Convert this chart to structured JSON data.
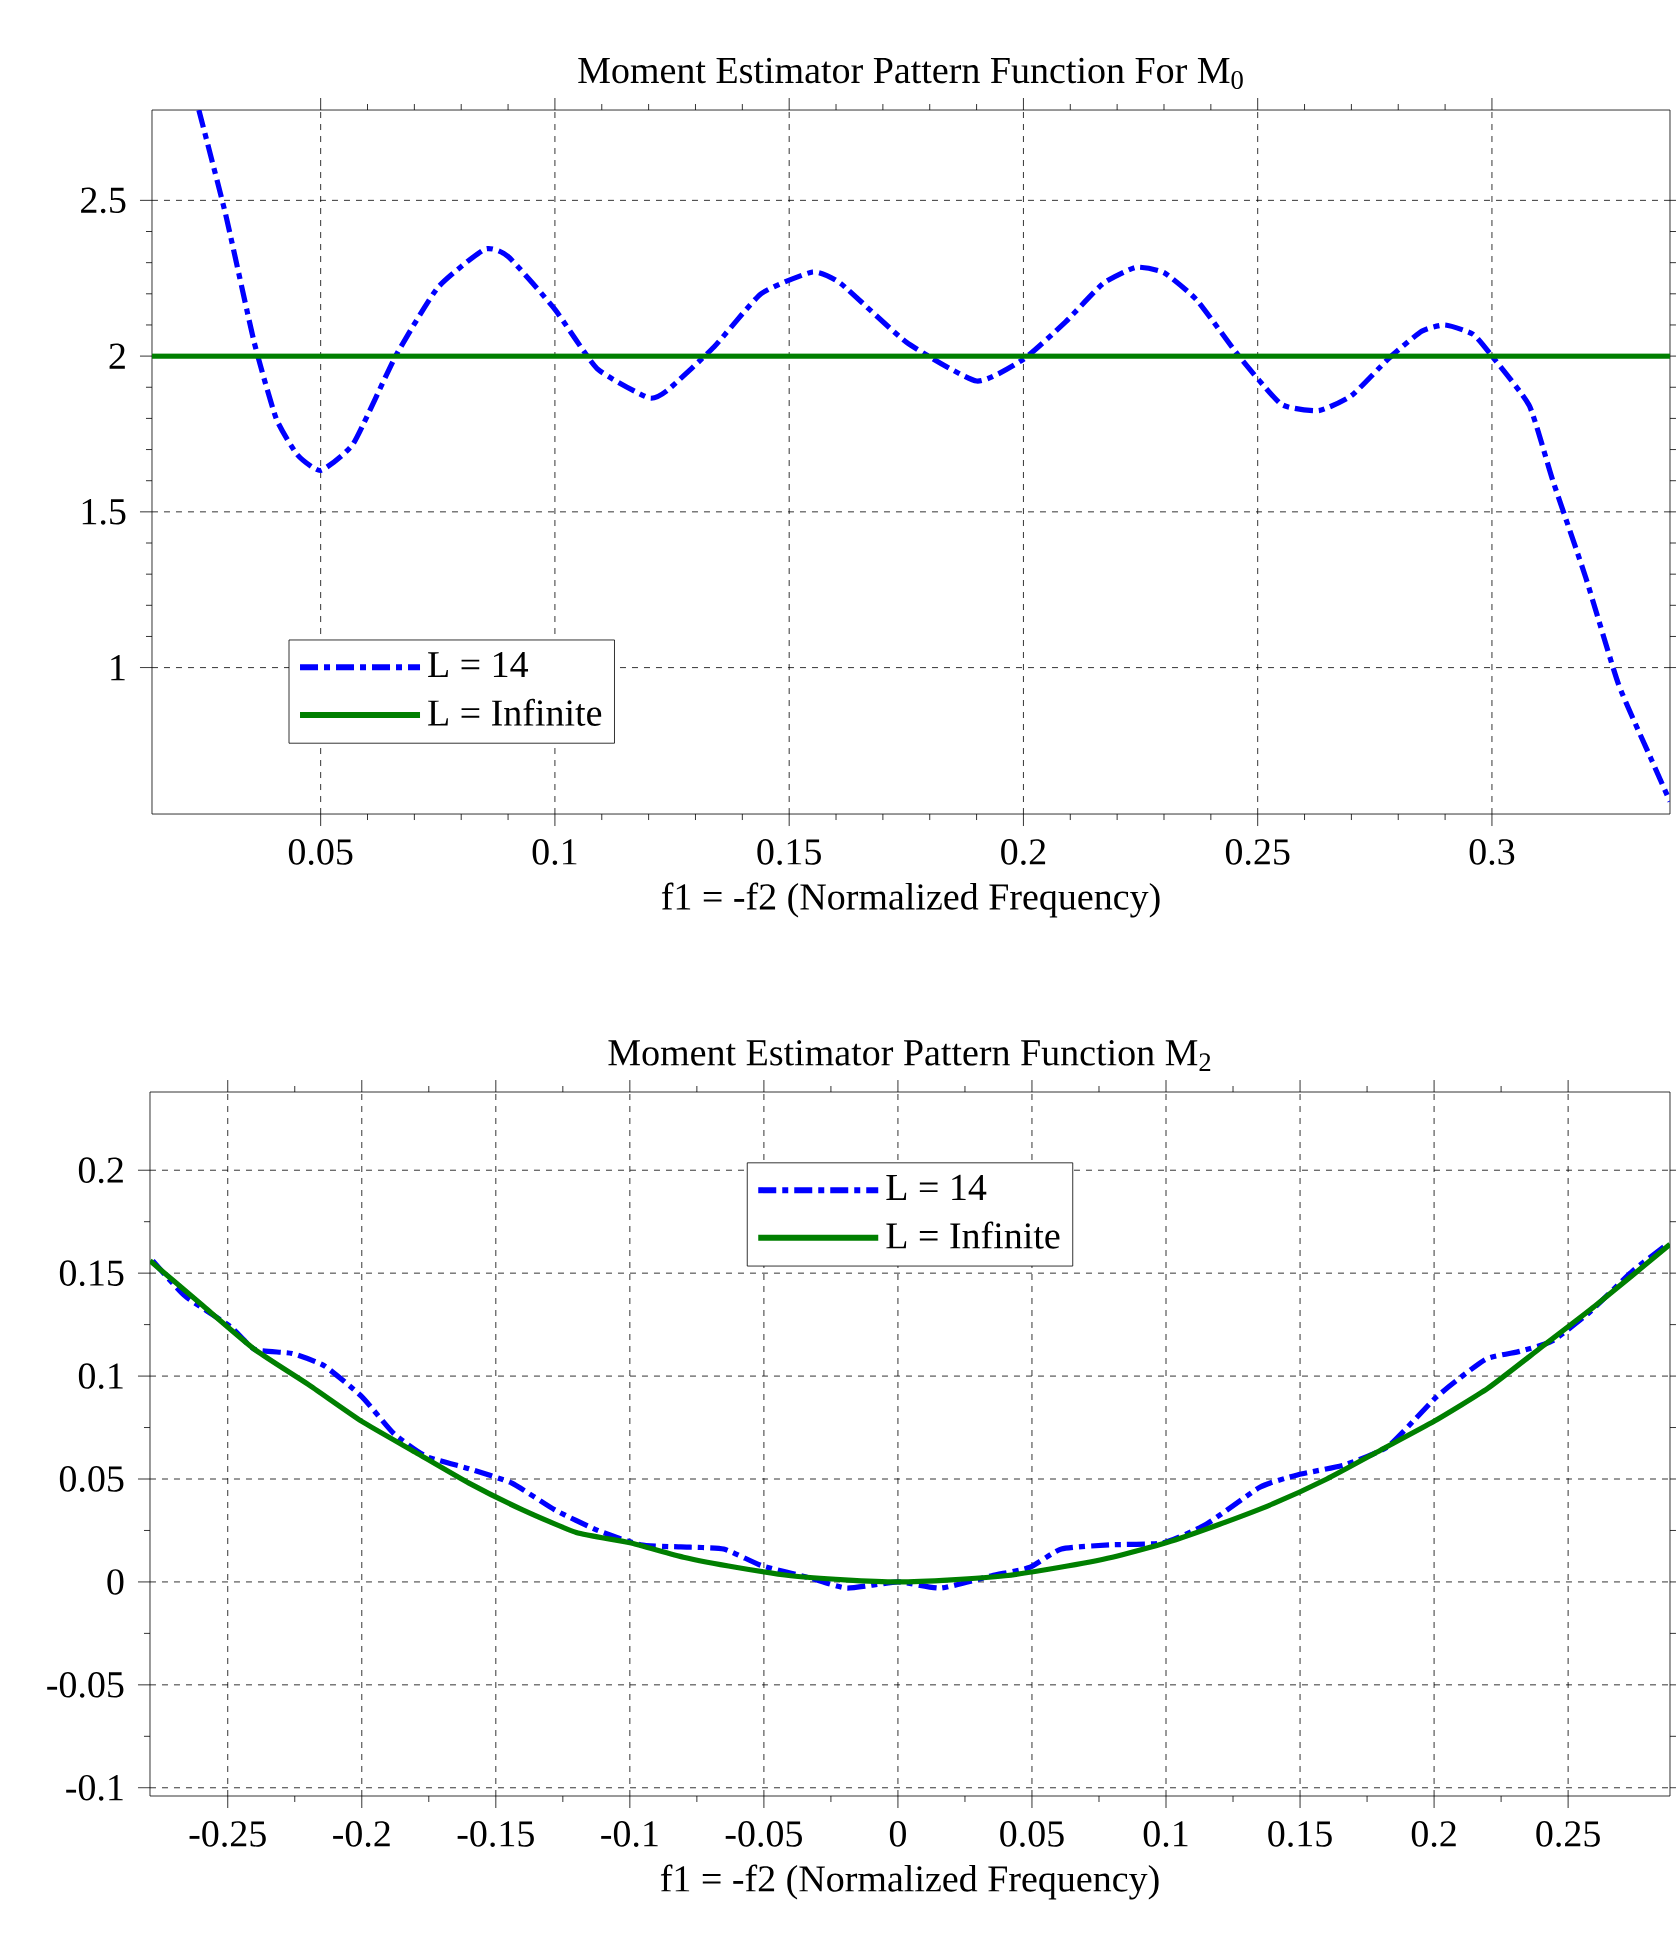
{
  "chart_data": [
    {
      "type": "line",
      "title": "Moment Estimator Pattern Function For M$_{0}$",
      "xlabel": "f1 = -f2 (Normalized Frequency)",
      "xlim": [
        0.014,
        0.338
      ],
      "ylim": [
        0.53,
        2.79
      ],
      "xticks": [
        0.05,
        0.1,
        0.15,
        0.2,
        0.25,
        0.3
      ],
      "yticks": [
        1,
        1.5,
        2,
        2.5
      ],
      "grid": true,
      "legend": "bottom left",
      "series": [
        {
          "name": "L = 14",
          "color": "#0000ff",
          "line_style": "dashdot",
          "x": [
            0.024,
            0.0297,
            0.0358,
            0.0405,
            0.045,
            0.05,
            0.057,
            0.066,
            0.075,
            0.085,
            0.09,
            0.1,
            0.109,
            0.12,
            0.124,
            0.134,
            0.144,
            0.155,
            0.161,
            0.175,
            0.19,
            0.2,
            0.209,
            0.217,
            0.224,
            0.23,
            0.237,
            0.246,
            0.255,
            0.263,
            0.27,
            0.278,
            0.285,
            0.29,
            0.296,
            0.3,
            0.308,
            0.313,
            0.32,
            0.327,
            0.334,
            0.338
          ],
          "values": [
            2.79,
            2.456,
            2.045,
            1.8,
            1.684,
            1.633,
            1.72,
            2.0,
            2.22,
            2.343,
            2.32,
            2.15,
            1.96,
            1.866,
            1.89,
            2.03,
            2.2,
            2.27,
            2.233,
            2.045,
            1.92,
            1.99,
            2.11,
            2.233,
            2.285,
            2.268,
            2.18,
            2.0,
            1.846,
            1.825,
            1.873,
            1.993,
            2.08,
            2.1,
            2.07,
            2.0,
            1.84,
            1.6,
            1.29,
            0.947,
            0.706,
            0.57
          ]
        },
        {
          "name": "L = Infinite",
          "color": "#007f00",
          "line_style": "solid",
          "x": [
            0.014,
            0.338
          ],
          "values": [
            2,
            2
          ]
        }
      ]
    },
    {
      "type": "line",
      "title": "Moment Estimator Pattern Function M$_{2}$",
      "xlabel": "f1 = -f2 (Normalized Frequency)",
      "xlim": [
        -0.279,
        0.288
      ],
      "ylim": [
        -0.104,
        0.238
      ],
      "xticks": [
        -0.25,
        -0.2,
        -0.15,
        -0.1,
        -0.05,
        0,
        0.05,
        0.1,
        0.15,
        0.2,
        0.25
      ],
      "yticks": [
        -0.1,
        -0.05,
        0,
        0.05,
        0.1,
        0.15,
        0.2
      ],
      "grid": true,
      "legend": "top",
      "series": [
        {
          "name": "L = 14",
          "color": "#0000ff",
          "line_style": "dashdot",
          "x": [
            -0.278,
            -0.266,
            -0.249,
            -0.24,
            -0.226,
            -0.214,
            -0.2,
            -0.188,
            -0.176,
            -0.16,
            -0.144,
            -0.128,
            -0.112,
            -0.096,
            -0.081,
            -0.065,
            -0.051,
            -0.033,
            -0.019,
            0,
            0.016,
            0.035,
            0.049,
            0.061,
            0.079,
            0.099,
            0.115,
            0.135,
            0.149,
            0.167,
            0.183,
            0.201,
            0.219,
            0.232,
            0.244,
            0.258,
            0.274,
            0.287
          ],
          "values": [
            0.156,
            0.139,
            0.124,
            0.113,
            0.111,
            0.105,
            0.09,
            0.072,
            0.061,
            0.055,
            0.048,
            0.035,
            0.025,
            0.018,
            0.017,
            0.016,
            0.008,
            0.002,
            -0.003,
            0,
            -0.003,
            0.003,
            0.007,
            0.016,
            0.018,
            0.019,
            0.028,
            0.046,
            0.052,
            0.057,
            0.066,
            0.09,
            0.108,
            0.112,
            0.117,
            0.131,
            0.151,
            0.164
          ]
        },
        {
          "name": "L = Infinite",
          "color": "#007f00",
          "line_style": "solid",
          "x": [
            -0.279,
            -0.26,
            -0.24,
            -0.22,
            -0.2,
            -0.18,
            -0.16,
            -0.14,
            -0.12,
            -0.1,
            -0.08,
            -0.06,
            -0.04,
            -0.02,
            0,
            0.02,
            0.04,
            0.06,
            0.08,
            0.1,
            0.12,
            0.14,
            0.16,
            0.18,
            0.2,
            0.22,
            0.24,
            0.26,
            0.288
          ],
          "values": [
            0.156,
            0.135,
            0.113,
            0.096,
            0.078,
            0.063,
            0.048,
            0.035,
            0.024,
            0.019,
            0.012,
            0.007,
            0.003,
            0.001,
            0,
            0.001,
            0.003,
            0.007,
            0.012,
            0.019,
            0.028,
            0.038,
            0.05,
            0.064,
            0.078,
            0.094,
            0.114,
            0.134,
            0.164
          ]
        }
      ]
    }
  ]
}
